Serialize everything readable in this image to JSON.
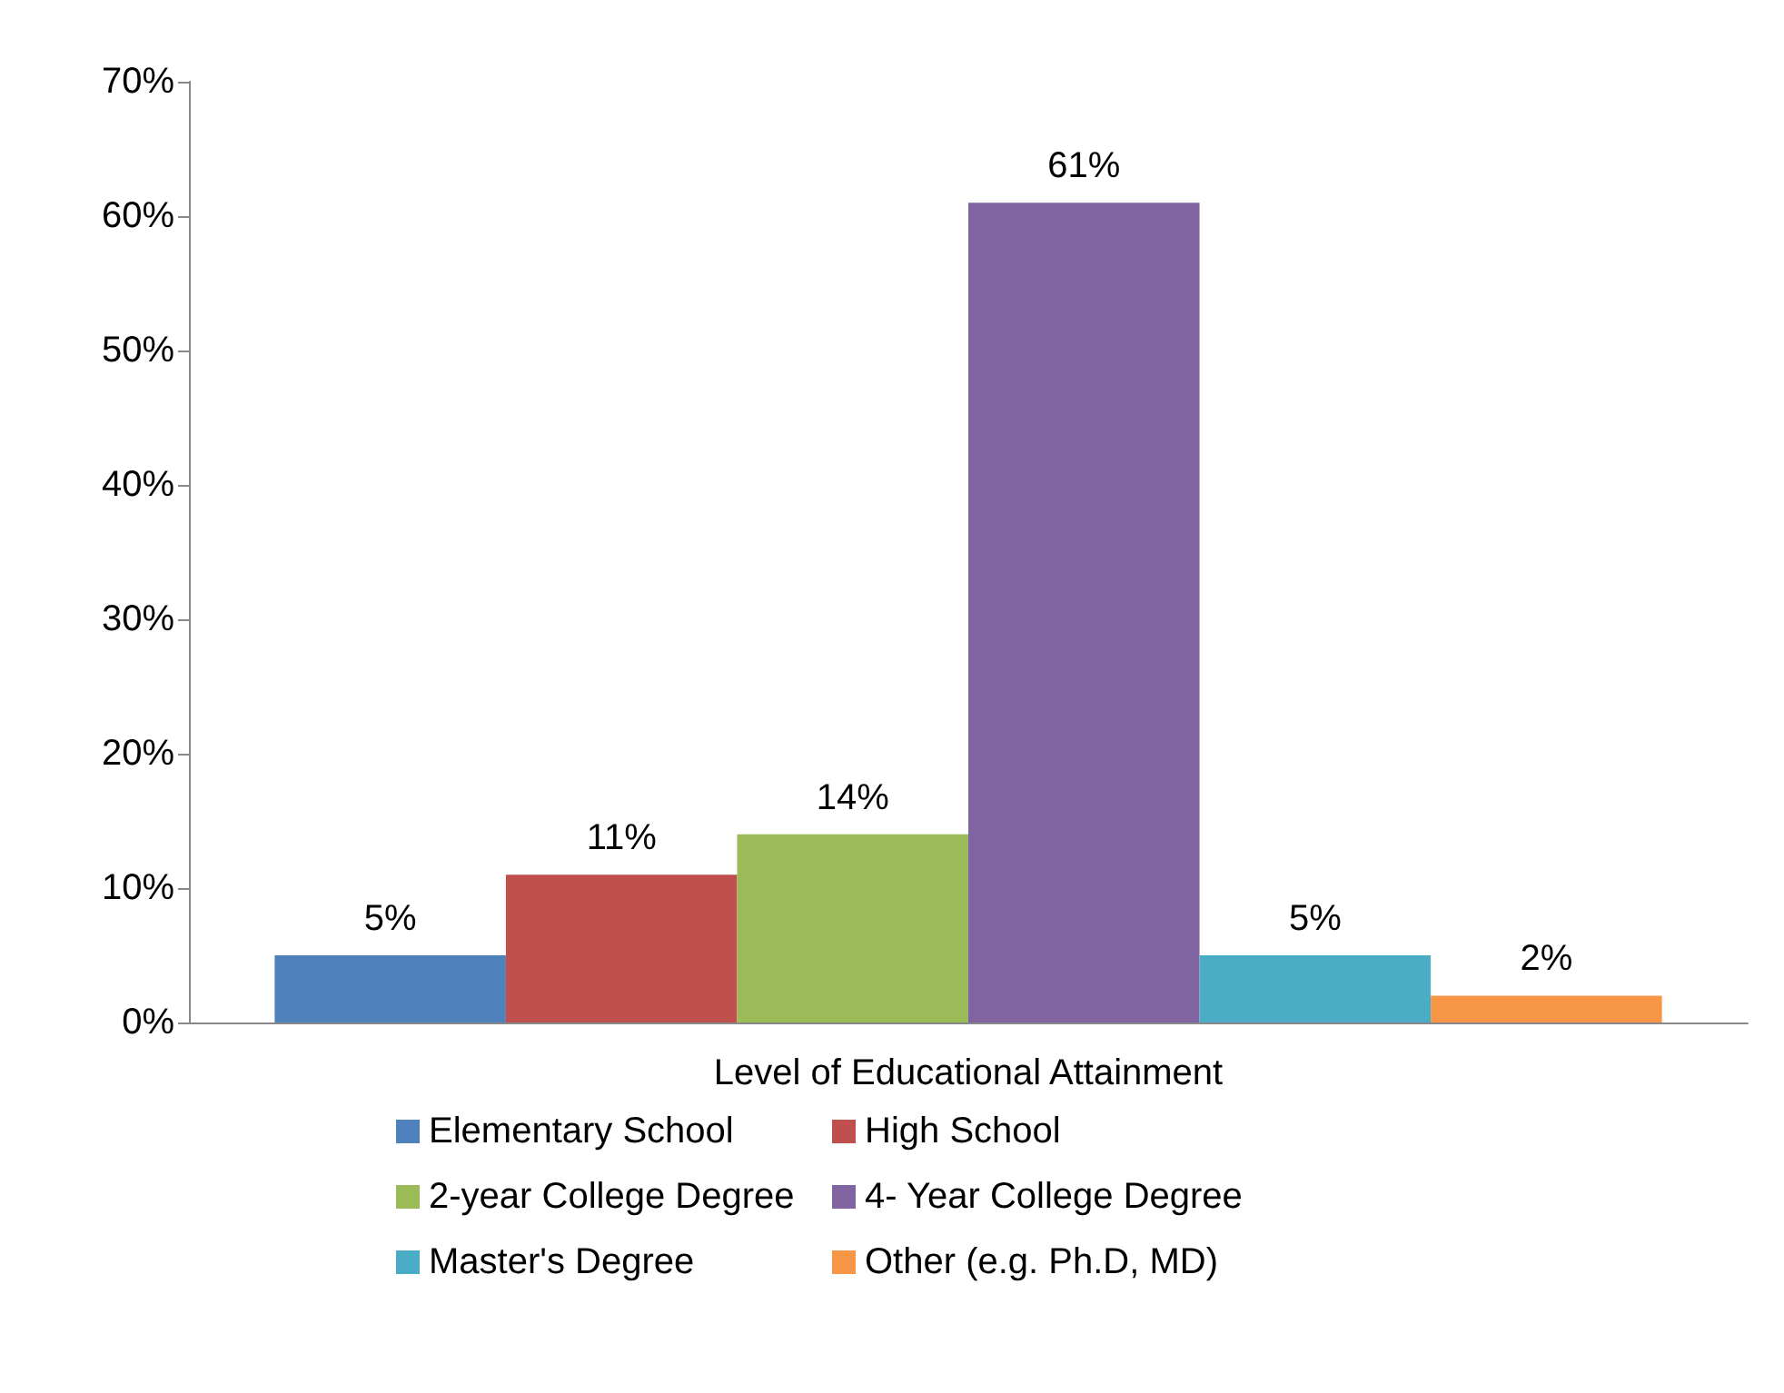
{
  "chart_data": {
    "type": "bar",
    "categories": [
      "Level of Educational Attainment"
    ],
    "series": [
      {
        "name": "Elementary School",
        "color": "#4f81bd",
        "values": [
          5
        ],
        "value_labels": [
          "5%"
        ]
      },
      {
        "name": "High School",
        "color": "#c0504d",
        "values": [
          11
        ],
        "value_labels": [
          "11%"
        ]
      },
      {
        "name": "2-year College Degree",
        "color": "#9bbb59",
        "values": [
          14
        ],
        "value_labels": [
          "14%"
        ]
      },
      {
        "name": "4- Year College Degree",
        "color": "#8064a2",
        "values": [
          61
        ],
        "value_labels": [
          "61%"
        ]
      },
      {
        "name": "Master's Degree",
        "color": "#4bacc6",
        "values": [
          5
        ],
        "value_labels": [
          "5%"
        ]
      },
      {
        "name": "Other (e.g. Ph.D, MD)",
        "color": "#f79646",
        "values": [
          2
        ],
        "value_labels": [
          "2%"
        ]
      }
    ],
    "ylim": [
      0,
      70
    ],
    "yticks": [
      {
        "value": 0,
        "label": "0%"
      },
      {
        "value": 10,
        "label": "10%"
      },
      {
        "value": 20,
        "label": "20%"
      },
      {
        "value": 30,
        "label": "30%"
      },
      {
        "value": 40,
        "label": "40%"
      },
      {
        "value": 50,
        "label": "50%"
      },
      {
        "value": 60,
        "label": "60%"
      },
      {
        "value": 70,
        "label": "70%"
      }
    ],
    "grid": false,
    "legend": "bottom"
  }
}
